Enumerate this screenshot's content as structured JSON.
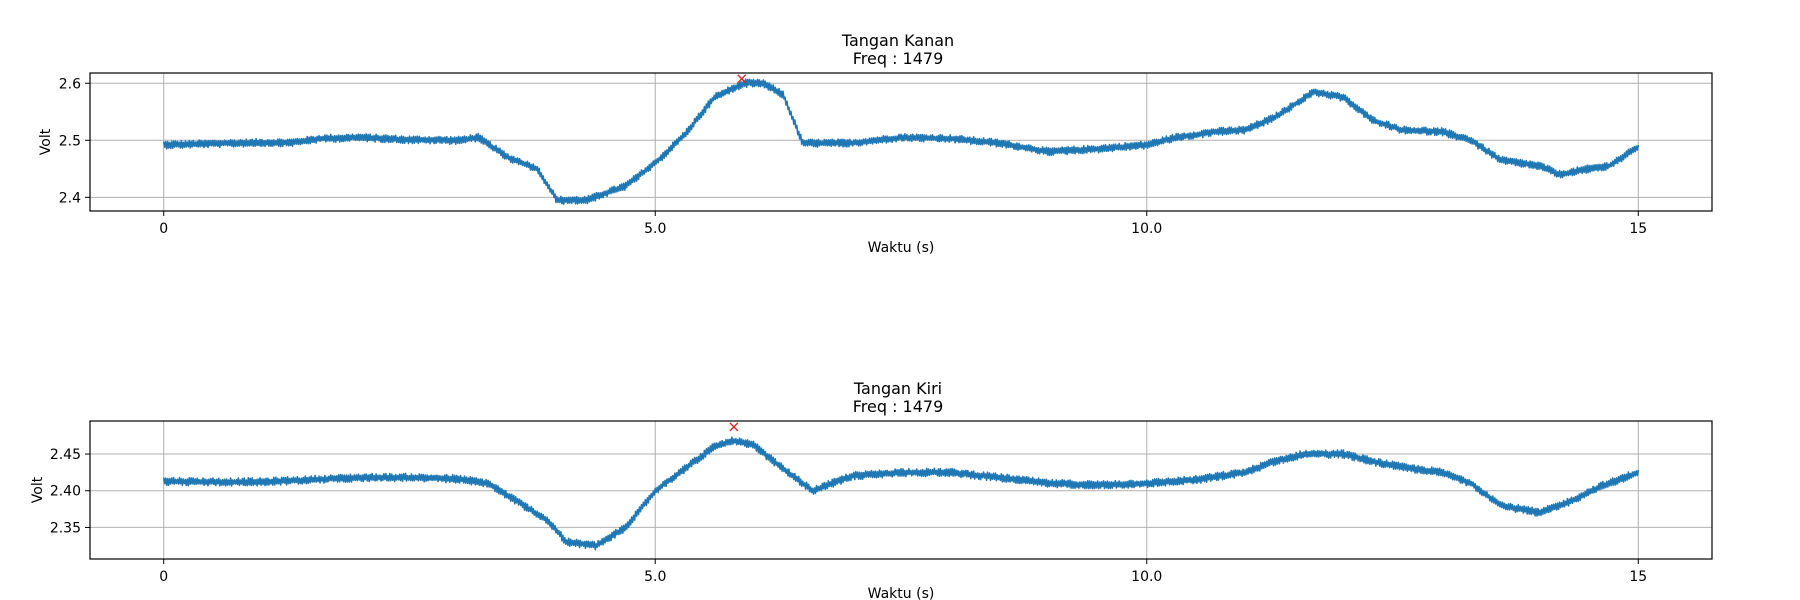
{
  "chart_data": [
    {
      "type": "line",
      "title": "Tangan Kanan",
      "subtitle": "Freq : 1479",
      "xlabel": "Waktu (s)",
      "ylabel": "Volt",
      "xlim": [
        -0.75,
        15.75
      ],
      "ylim": [
        2.376,
        2.618
      ],
      "xticks": [
        0,
        5,
        10,
        15
      ],
      "xtick_labels": [
        "0",
        "5.0",
        "10.0",
        "15"
      ],
      "yticks": [
        2.4,
        2.5,
        2.6
      ],
      "ytick_labels": [
        "2.4",
        "2.5",
        "2.6"
      ],
      "grid": true,
      "noise": 0.005,
      "series": [
        {
          "color": "#1f77b4",
          "x": [
            0,
            0.5,
            1.0,
            1.3,
            1.6,
            2.0,
            2.5,
            3.0,
            3.2,
            3.5,
            3.8,
            4.0,
            4.3,
            4.7,
            5.0,
            5.3,
            5.6,
            5.9,
            6.1,
            6.3,
            6.5,
            7.0,
            7.5,
            8.0,
            8.5,
            9.0,
            9.5,
            10.0,
            10.3,
            10.7,
            11.0,
            11.3,
            11.7,
            12.0,
            12.3,
            12.6,
            13.0,
            13.3,
            13.6,
            14.0,
            14.2,
            14.5,
            14.7,
            15.0
          ],
          "y": [
            2.492,
            2.494,
            2.496,
            2.496,
            2.503,
            2.505,
            2.501,
            2.5,
            2.505,
            2.47,
            2.45,
            2.395,
            2.395,
            2.42,
            2.46,
            2.51,
            2.575,
            2.6,
            2.6,
            2.58,
            2.495,
            2.495,
            2.505,
            2.503,
            2.495,
            2.48,
            2.485,
            2.492,
            2.505,
            2.515,
            2.518,
            2.54,
            2.585,
            2.575,
            2.535,
            2.518,
            2.515,
            2.5,
            2.465,
            2.455,
            2.44,
            2.45,
            2.455,
            2.488
          ]
        }
      ],
      "peak": {
        "x": 5.88,
        "y": 2.608,
        "marker": "x",
        "color": "#d62728"
      }
    },
    {
      "type": "line",
      "title": "Tangan Kiri",
      "subtitle": "Freq :  1479",
      "xlabel": "Waktu (s)",
      "ylabel": "Volt",
      "xlim": [
        -0.75,
        15.75
      ],
      "ylim": [
        2.307,
        2.495
      ],
      "xticks": [
        0,
        5,
        10,
        15
      ],
      "xtick_labels": [
        "0",
        "5.0",
        "10.0",
        "15"
      ],
      "yticks": [
        2.35,
        2.4,
        2.45
      ],
      "ytick_labels": [
        "2.35",
        "2.40",
        "2.45"
      ],
      "grid": true,
      "noise": 0.004,
      "series": [
        {
          "color": "#1f77b4",
          "x": [
            0,
            0.5,
            1.0,
            1.5,
            2.0,
            2.5,
            3.0,
            3.3,
            3.6,
            3.9,
            4.1,
            4.4,
            4.7,
            5.0,
            5.3,
            5.6,
            5.8,
            6.0,
            6.3,
            6.6,
            7.0,
            7.5,
            8.0,
            8.5,
            9.0,
            9.5,
            10.0,
            10.5,
            11.0,
            11.3,
            11.6,
            12.0,
            12.3,
            12.6,
            13.0,
            13.3,
            13.6,
            14.0,
            14.3,
            14.6,
            15.0
          ],
          "y": [
            2.413,
            2.412,
            2.412,
            2.415,
            2.418,
            2.418,
            2.416,
            2.41,
            2.385,
            2.36,
            2.33,
            2.325,
            2.35,
            2.4,
            2.43,
            2.46,
            2.468,
            2.462,
            2.43,
            2.4,
            2.42,
            2.425,
            2.425,
            2.418,
            2.41,
            2.408,
            2.41,
            2.415,
            2.425,
            2.44,
            2.45,
            2.45,
            2.44,
            2.432,
            2.425,
            2.41,
            2.38,
            2.37,
            2.385,
            2.405,
            2.425
          ]
        }
      ],
      "peak": {
        "x": 5.8,
        "y": 2.487,
        "marker": "x",
        "color": "#d62728"
      }
    }
  ]
}
